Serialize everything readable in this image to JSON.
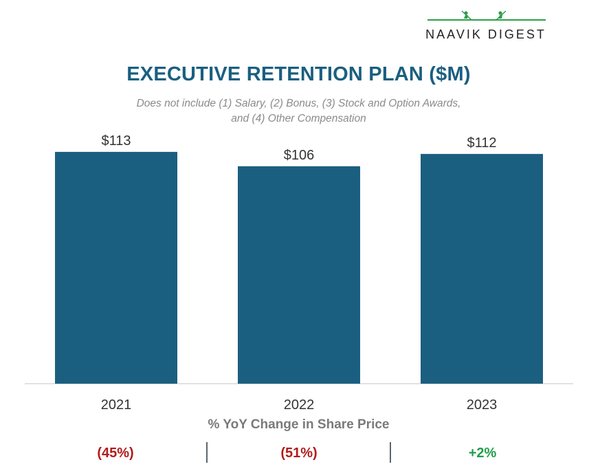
{
  "brand": {
    "name": "NAAVIK DIGEST",
    "logo_icon": "rowing-boat-icon",
    "accent": "#2e9e4a"
  },
  "chart_data": {
    "type": "bar",
    "title": "EXECUTIVE RETENTION PLAN ($M)",
    "subtitle_lines": [
      "Does not include (1) Salary, (2) Bonus, (3) Stock and Option Awards,",
      "and (4) Other Compensation"
    ],
    "categories": [
      "2021",
      "2022",
      "2023"
    ],
    "values": [
      113,
      106,
      112
    ],
    "data_labels": [
      "$113",
      "$106",
      "$112"
    ],
    "bar_color": "#1b5f80",
    "ylim": [
      0,
      120
    ],
    "grid": false,
    "legend": "none"
  },
  "yoy": {
    "title": "% YoY Change in Share Price",
    "values": [
      "(45%)",
      "(51%)",
      "+2%"
    ],
    "colors": [
      "#b01c1c",
      "#b01c1c",
      "#1e9e4a"
    ]
  }
}
